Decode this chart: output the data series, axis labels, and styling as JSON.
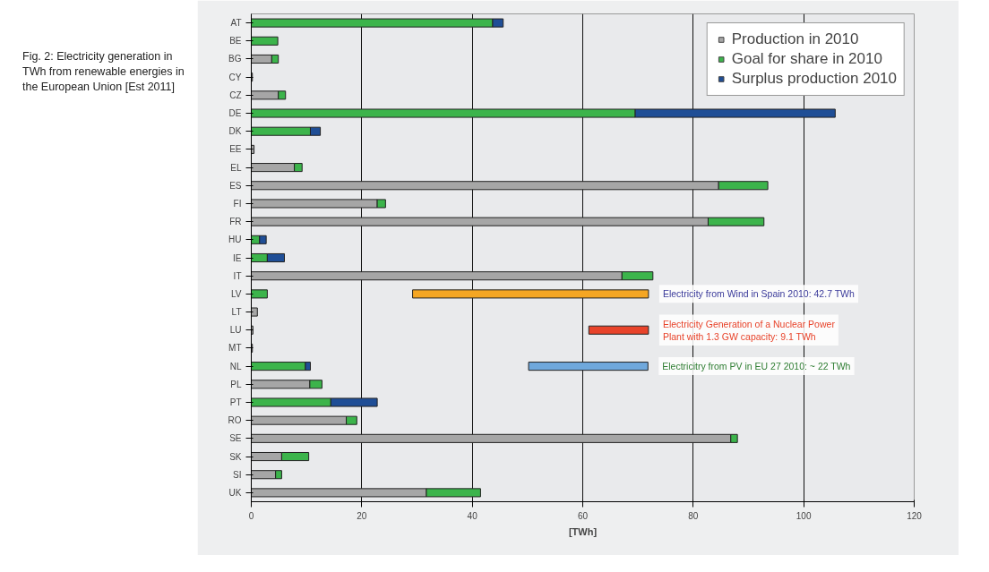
{
  "chart_data": [
    {
      "type": "bar",
      "orientation": "horizontal",
      "stacked": true,
      "title": "Fig. 2: Electricity generation in TWh from renewable energies in the European Union [Est 2011]",
      "xlabel": "[TWh]",
      "categories": [
        "AT",
        "BE",
        "BG",
        "CY",
        "CZ",
        "DE",
        "DK",
        "EE",
        "EL",
        "ES",
        "FI",
        "FR",
        "HU",
        "IE",
        "IT",
        "LV",
        "LT",
        "LU",
        "MT",
        "NL",
        "PL",
        "PT",
        "RO",
        "SE",
        "SK",
        "SI",
        "UK"
      ],
      "series": [
        {
          "name": "Production in 2010",
          "color": "#a6a6a6",
          "values": [
            null,
            null,
            3.7,
            0.2,
            4.9,
            null,
            null,
            0.5,
            7.8,
            84.6,
            22.8,
            82.7,
            null,
            null,
            67.1,
            null,
            1.1,
            0.3,
            0.2,
            null,
            10.6,
            null,
            17.2,
            86.8,
            5.5,
            4.4,
            31.7
          ]
        },
        {
          "name": "Goal for share in 2010",
          "color": "#3cb44b",
          "values": [
            43.7,
            4.8,
            1.2,
            null,
            1.3,
            69.5,
            10.7,
            null,
            1.4,
            8.9,
            1.5,
            10.1,
            1.5,
            2.9,
            5.6,
            2.9,
            null,
            null,
            null,
            9.8,
            2.2,
            14.4,
            1.9,
            1.2,
            4.9,
            1.1,
            9.8
          ]
        },
        {
          "name": "Surplus production 2010",
          "color": "#1f4e96",
          "values": [
            1.9,
            null,
            null,
            null,
            null,
            36.2,
            1.8,
            null,
            null,
            null,
            null,
            null,
            1.2,
            3.1,
            null,
            null,
            null,
            null,
            null,
            0.9,
            null,
            8.4,
            null,
            null,
            null,
            null,
            null
          ]
        }
      ],
      "xlim": [
        0,
        120
      ],
      "xticks": [
        0,
        20,
        40,
        60,
        80,
        100,
        120
      ],
      "grid": "x",
      "legend": "top right"
    },
    {
      "type": "bar",
      "orientation": "horizontal",
      "categories": [
        null,
        null,
        null,
        null,
        null,
        null,
        null,
        null,
        null,
        null,
        null,
        null,
        null,
        null,
        null,
        null,
        null,
        null,
        null,
        null,
        null,
        null,
        null,
        null,
        null,
        null,
        null
      ],
      "base": [
        null,
        null,
        null,
        null,
        null,
        null,
        null,
        null,
        null,
        null,
        null,
        null,
        null,
        null,
        null,
        29.2,
        null,
        61.1,
        null,
        50.2,
        null,
        null,
        null,
        null,
        null,
        null,
        null
      ],
      "values": [
        null,
        null,
        null,
        null,
        null,
        null,
        null,
        null,
        null,
        null,
        null,
        null,
        null,
        null,
        null,
        42.7,
        null,
        10.8,
        null,
        21.6,
        null,
        null,
        null,
        null,
        null,
        null,
        null
      ],
      "colors": [
        null,
        null,
        null,
        null,
        null,
        null,
        null,
        null,
        null,
        null,
        null,
        null,
        null,
        null,
        null,
        "#f5a623",
        null,
        "#e8432a",
        null,
        "#6fa8dc",
        null,
        null,
        null,
        null,
        null,
        null,
        null
      ],
      "annotations": [
        "Electricity from Wind in Spain 2010: 42.7 TWh",
        "Electricity Generation of a Nuclear Power\nPlant with 1.3 GW capacity: 9.1 TWh",
        "Electricitry from PV in EU 27 2010: ~ 22 TWh"
      ],
      "xlim": [
        0,
        120
      ],
      "xticks": [
        0,
        20,
        40,
        60,
        80,
        100,
        120
      ],
      "tick_labels": false
    }
  ]
}
